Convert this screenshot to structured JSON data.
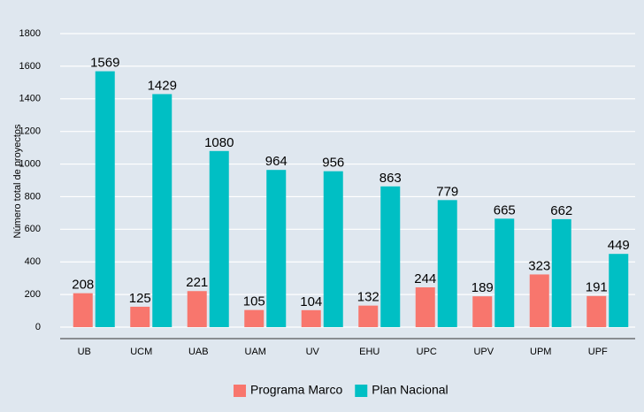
{
  "chart_data": {
    "type": "bar",
    "y_label": "Número total de proyectos",
    "categories": [
      "UB",
      "UCM",
      "UAB",
      "UAM",
      "UV",
      "EHU",
      "UPC",
      "UPV",
      "UPM",
      "UPF"
    ],
    "series": [
      {
        "name": "Programa Marco",
        "color": "#f8766d",
        "values": [
          208,
          125,
          221,
          105,
          104,
          132,
          244,
          189,
          323,
          191
        ]
      },
      {
        "name": "Plan Nacional",
        "color": "#00bfc4",
        "values": [
          1569,
          1429,
          1080,
          964,
          956,
          863,
          779,
          665,
          662,
          449
        ]
      }
    ],
    "ylim": [
      0,
      1800
    ],
    "yticks": [
      0,
      200,
      400,
      600,
      800,
      1000,
      1200,
      1400,
      1600,
      1800
    ],
    "grid": true,
    "legend": "bottom"
  }
}
